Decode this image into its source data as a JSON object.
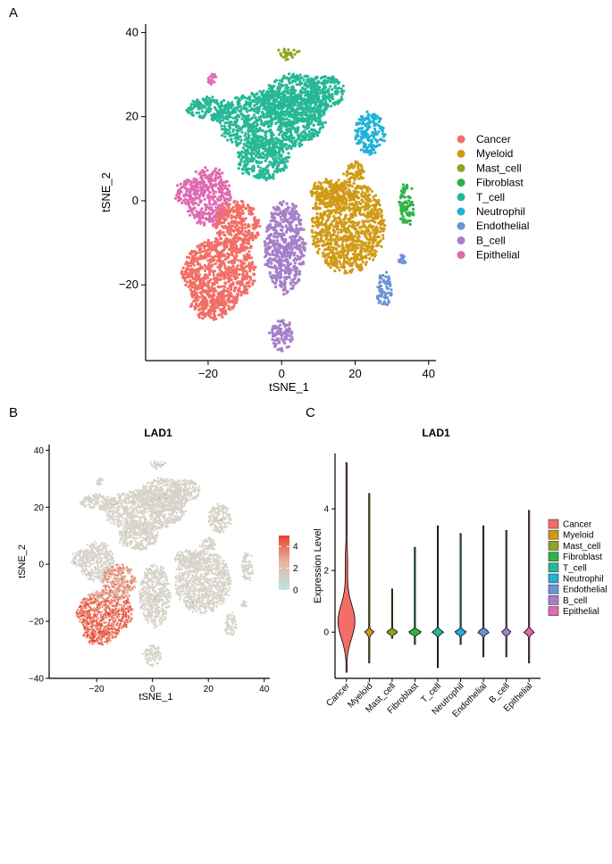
{
  "panels": {
    "a": {
      "label": "A"
    },
    "b": {
      "label": "B"
    },
    "c": {
      "label": "C"
    }
  },
  "colors": {
    "Cancer": "#F26E66",
    "Myeloid": "#D09A14",
    "Mast_cell": "#8FA420",
    "Fibroblast": "#2EB347",
    "T_cell": "#26B896",
    "Neutrophil": "#21B2D8",
    "Endothelial": "#6C93D6",
    "B_cell": "#A57FC8",
    "Epithelial": "#E06AB0",
    "grey": "#D6D3C9",
    "high": "#E8432E",
    "low": "#B9E3E6"
  },
  "chart_data": [
    {
      "id": "A",
      "type": "scatter",
      "title": "",
      "xlabel": "tSNE_1",
      "ylabel": "tSNE_2",
      "xlim": [
        -37,
        42
      ],
      "ylim": [
        -38,
        42
      ],
      "xticks": [
        -20,
        0,
        20,
        40
      ],
      "yticks": [
        -20,
        0,
        20,
        40
      ],
      "legend": [
        "Cancer",
        "Myeloid",
        "Mast_cell",
        "Fibroblast",
        "T_cell",
        "Neutrophil",
        "Endothelial",
        "B_cell",
        "Epithelial"
      ],
      "legend_position": "right",
      "clusters": [
        {
          "name": "T_cell",
          "blobs": [
            [
              -3,
              19,
              15,
              7
            ],
            [
              -20,
              22,
              6,
              2.5
            ],
            [
              4,
              24,
              9,
              6
            ],
            [
              -5,
              10,
              7,
              5
            ],
            [
              12,
              26,
              5,
              4
            ]
          ]
        },
        {
          "name": "Epithelial",
          "blobs": [
            [
              -20,
              1,
              6,
              7
            ],
            [
              -26,
              2,
              3,
              3
            ],
            [
              -19,
              29,
              0.8,
              1.5
            ]
          ]
        },
        {
          "name": "Cancer",
          "blobs": [
            [
              -17,
              -17,
              10,
              8
            ],
            [
              -12,
              -6,
              6,
              6
            ],
            [
              -19,
              -25,
              6,
              3
            ]
          ]
        },
        {
          "name": "B_cell",
          "blobs": [
            [
              1,
              -11,
              5.5,
              11
            ],
            [
              0,
              -32,
              3,
              3.5
            ]
          ]
        },
        {
          "name": "Myeloid",
          "blobs": [
            [
              18,
              -6,
              10,
              11
            ],
            [
              13,
              2,
              5,
              3
            ],
            [
              20,
              7,
              3,
              2
            ]
          ]
        },
        {
          "name": "Neutrophil",
          "blobs": [
            [
              24,
              16,
              4,
              5
            ]
          ]
        },
        {
          "name": "Mast_cell",
          "blobs": [
            [
              2,
              35,
              3,
              1.2
            ]
          ]
        },
        {
          "name": "Fibroblast",
          "blobs": [
            [
              34,
              -1,
              2,
              5
            ]
          ]
        },
        {
          "name": "Endothelial",
          "blobs": [
            [
              28,
              -21,
              2,
              4
            ],
            [
              33,
              -14,
              0.7,
              1
            ]
          ]
        }
      ]
    },
    {
      "id": "B",
      "type": "scatter",
      "title": "LAD1",
      "xlabel": "tSNE_1",
      "ylabel": "tSNE_2",
      "xlim": [
        -37,
        42
      ],
      "ylim": [
        -40,
        42
      ],
      "xticks": [
        -20,
        0,
        20,
        40
      ],
      "yticks": [
        -40,
        -20,
        0,
        20,
        40
      ],
      "colorbar": {
        "ticks": [
          0,
          2,
          4
        ],
        "range": [
          0,
          5
        ]
      },
      "legend_position": "right"
    },
    {
      "id": "C",
      "type": "violin",
      "title": "LAD1",
      "xlabel": "",
      "ylabel": "Expression Level",
      "ylim": [
        -1.5,
        5.8
      ],
      "yticks": [
        0,
        2,
        4
      ],
      "categories": [
        "Cancer",
        "Myeloid",
        "Mast_cell",
        "Fibroblast",
        "T_cell",
        "Neutrophil",
        "Endothelial",
        "B_cell",
        "Epithelial"
      ],
      "ranges": [
        [
          -1.3,
          5.5
        ],
        [
          -1.0,
          4.5
        ],
        [
          -0.2,
          1.4
        ],
        [
          -0.4,
          2.75
        ],
        [
          -1.15,
          3.45
        ],
        [
          -0.4,
          3.2
        ],
        [
          -0.8,
          3.45
        ],
        [
          -0.8,
          3.3
        ],
        [
          -1.0,
          3.95
        ]
      ],
      "widths": [
        0.38,
        0.18,
        0.2,
        0.24,
        0.22,
        0.22,
        0.22,
        0.18,
        0.2
      ],
      "legend_position": "right"
    }
  ]
}
